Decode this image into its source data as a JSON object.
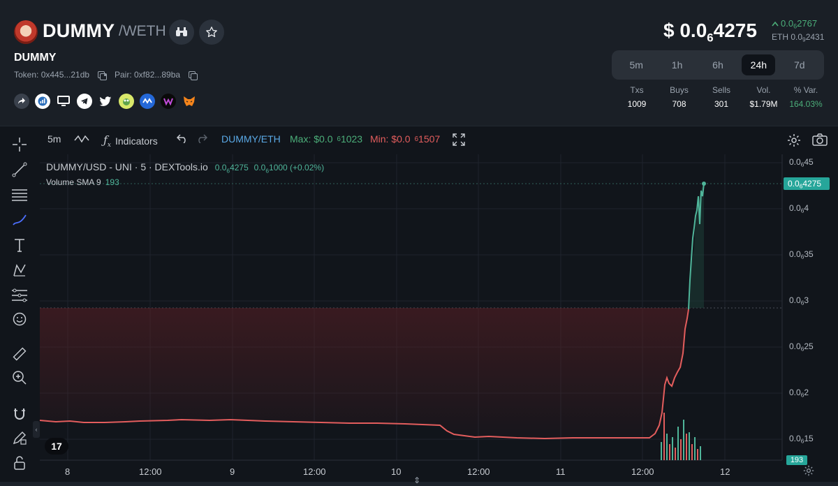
{
  "header": {
    "token_symbol": "DUMMY",
    "pair_separator": "/WETH",
    "token_name": "DUMMY",
    "token_address_label": "Token: 0x445...21db",
    "pair_address_label": "Pair: 0xf82...89ba",
    "price_prefix": "$ 0.0",
    "price_sub": "6",
    "price_suffix": "4275",
    "delta_prefix": "0.0",
    "delta_sub": "6",
    "delta_suffix": "2767",
    "eth_prefix": "ETH 0.0",
    "eth_sub": "9",
    "eth_suffix": "2431",
    "accent_up": "#4caf7a",
    "social_icons": [
      "share-icon",
      "chart-stats-icon",
      "website-icon",
      "telegram-icon",
      "twitter-icon",
      "pepe-icon",
      "coinmarketcap-icon",
      "purple-w-icon",
      "metamask-icon"
    ]
  },
  "timeframes": [
    "5m",
    "1h",
    "6h",
    "24h",
    "7d"
  ],
  "active_timeframe": "24h",
  "stats": [
    {
      "label": "Txs",
      "value": "1009"
    },
    {
      "label": "Buys",
      "value": "708"
    },
    {
      "label": "Sells",
      "value": "301"
    },
    {
      "label": "Vol.",
      "value": "$1.79M"
    },
    {
      "label": "% Var.",
      "value": "164.03%"
    }
  ],
  "toolbar": {
    "interval": "5m",
    "indicators": "Indicators",
    "pair": "DUMMY/ETH",
    "max_prefix": "Max: $0.0",
    "max_sub": "6",
    "max_suffix": "1023",
    "min_prefix": "Min: $0.0",
    "min_sub": "6",
    "min_suffix": "1507"
  },
  "legend": {
    "series_title": "DUMMY/USD - UNI · 5 · DEXTools.io",
    "v1_prefix": "0.0",
    "v1_sub": "6",
    "v1_suffix": "4275",
    "v2_prefix": "0.0",
    "v2_sub": "6",
    "v2_suffix": "1000 (+0.02%)",
    "volume_label": "Volume SMA 9",
    "volume_value": "193"
  },
  "y_axis": [
    {
      "prefix": "0.0",
      "sub": "6",
      "suffix": "45"
    },
    {
      "prefix": "0.0",
      "sub": "6",
      "suffix": "4"
    },
    {
      "prefix": "0.0",
      "sub": "6",
      "suffix": "35"
    },
    {
      "prefix": "0.0",
      "sub": "6",
      "suffix": "3"
    },
    {
      "prefix": "0.0",
      "sub": "6",
      "suffix": "25"
    },
    {
      "prefix": "0.0",
      "sub": "6",
      "suffix": "2"
    },
    {
      "prefix": "0.0",
      "sub": "6",
      "suffix": "15"
    }
  ],
  "current_price_tag": {
    "prefix": "0.0",
    "sub": "6",
    "suffix": "4275"
  },
  "volume_tag": "193",
  "x_axis": [
    "8",
    "12:00",
    "9",
    "12:00",
    "10",
    "12:00",
    "11",
    "12:00",
    "12"
  ],
  "colors": {
    "up": "#4fb59a",
    "down": "#e35d5d",
    "accent_blue": "#5aa9e6",
    "max_green": "#4caf7a",
    "min_red": "#e35d5d"
  }
}
